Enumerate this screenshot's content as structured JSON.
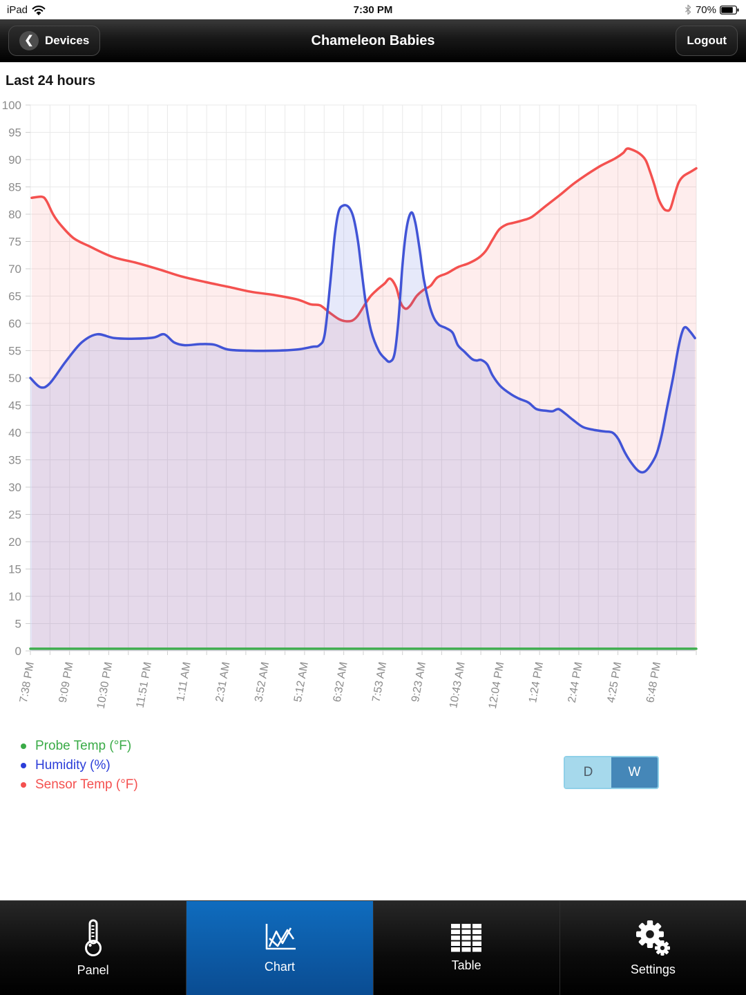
{
  "status_bar": {
    "device": "iPad",
    "time": "7:30 PM",
    "battery": "70%"
  },
  "nav_bar": {
    "back_label": "Devices",
    "title": "Chameleon Babies",
    "logout_label": "Logout"
  },
  "section": {
    "heading": "Last 24 hours"
  },
  "chart_data": {
    "type": "line",
    "title": "Last 24 hours",
    "ylim": [
      0,
      100
    ],
    "grid": true,
    "grid_color": "#e9e9e9",
    "tick_color": "#8b8b8b",
    "y_ticks": [
      0,
      5,
      10,
      15,
      20,
      25,
      30,
      35,
      40,
      45,
      50,
      55,
      60,
      65,
      70,
      75,
      80,
      85,
      90,
      95,
      100
    ],
    "x_gridline_count": 35,
    "x_label_every": 2,
    "x_tick_labels": [
      "7:38 PM",
      "9:09 PM",
      "10:30 PM",
      "11:51 PM",
      "1:11 AM",
      "2:31 AM",
      "3:52 AM",
      "5:12 AM",
      "6:32 AM",
      "7:53 AM",
      "9:23 AM",
      "10:43 AM",
      "12:04 PM",
      "1:24 PM",
      "2:44 PM",
      "4:25 PM",
      "6:48 PM"
    ],
    "series": [
      {
        "name": "Probe Temp (°F)",
        "color": "#3fae4f",
        "fill": "none",
        "points": [
          [
            0,
            0.4
          ],
          [
            100,
            0.4
          ]
        ]
      },
      {
        "name": "Humidity (%)",
        "color": "#4154d6",
        "fill": "rgba(65,84,214,0.13)",
        "points": [
          [
            0,
            50
          ],
          [
            1.5,
            48.3
          ],
          [
            2.9,
            49
          ],
          [
            5.3,
            53
          ],
          [
            7.7,
            56.5
          ],
          [
            10,
            58
          ],
          [
            12.6,
            57.3
          ],
          [
            15.7,
            57.2
          ],
          [
            18.5,
            57.4
          ],
          [
            20.1,
            58
          ],
          [
            21.6,
            56.5
          ],
          [
            23.2,
            56
          ],
          [
            25.5,
            56.2
          ],
          [
            27.6,
            56.1
          ],
          [
            29.7,
            55.2
          ],
          [
            32.8,
            55
          ],
          [
            36.9,
            55
          ],
          [
            40,
            55.2
          ],
          [
            42.3,
            55.7
          ],
          [
            43.4,
            56
          ],
          [
            44.2,
            58
          ],
          [
            45,
            67
          ],
          [
            45.7,
            76
          ],
          [
            46.3,
            80.5
          ],
          [
            47,
            81.6
          ],
          [
            47.8,
            81.3
          ],
          [
            48.5,
            79.5
          ],
          [
            49.2,
            75
          ],
          [
            49.8,
            69
          ],
          [
            50.4,
            63.5
          ],
          [
            51.2,
            58.5
          ],
          [
            52.3,
            55
          ],
          [
            53.3,
            53.5
          ],
          [
            54,
            53
          ],
          [
            54.7,
            54.5
          ],
          [
            55.3,
            61
          ],
          [
            55.9,
            71
          ],
          [
            56.5,
            77.5
          ],
          [
            57.2,
            80.3
          ],
          [
            57.8,
            78.5
          ],
          [
            58.4,
            74
          ],
          [
            59.1,
            68
          ],
          [
            59.9,
            63.5
          ],
          [
            60.6,
            61
          ],
          [
            61.4,
            59.7
          ],
          [
            62.3,
            59.2
          ],
          [
            63.4,
            58.3
          ],
          [
            64.2,
            56
          ],
          [
            65.2,
            54.8
          ],
          [
            66.3,
            53.5
          ],
          [
            67,
            53.2
          ],
          [
            67.7,
            53.3
          ],
          [
            68.6,
            52.5
          ],
          [
            69.4,
            50.5
          ],
          [
            70.6,
            48.5
          ],
          [
            72.2,
            47
          ],
          [
            73.4,
            46.2
          ],
          [
            74.8,
            45.5
          ],
          [
            76,
            44.3
          ],
          [
            77.4,
            44
          ],
          [
            78.4,
            43.9
          ],
          [
            79.3,
            44.3
          ],
          [
            80.3,
            43.5
          ],
          [
            81.5,
            42.3
          ],
          [
            83,
            41
          ],
          [
            84.6,
            40.5
          ],
          [
            86.2,
            40.2
          ],
          [
            87.4,
            40
          ],
          [
            88.3,
            38.8
          ],
          [
            89.3,
            36.3
          ],
          [
            90.4,
            34.2
          ],
          [
            91.4,
            32.9
          ],
          [
            92.2,
            32.8
          ],
          [
            93,
            33.8
          ],
          [
            94,
            36
          ],
          [
            94.8,
            39.5
          ],
          [
            95.6,
            44.5
          ],
          [
            96.5,
            50
          ],
          [
            97.3,
            55.5
          ],
          [
            97.9,
            58.5
          ],
          [
            98.4,
            59.3
          ],
          [
            99.2,
            58.3
          ],
          [
            99.8,
            57.3
          ]
        ]
      },
      {
        "name": "Sensor Temp (°F)",
        "color": "#f4514f",
        "fill": "rgba(244,81,79,0.10)",
        "points": [
          [
            0.2,
            83
          ],
          [
            1.7,
            83.2
          ],
          [
            2.4,
            82.5
          ],
          [
            3.4,
            80
          ],
          [
            4.5,
            78.1
          ],
          [
            6.5,
            75.6
          ],
          [
            8.9,
            74.1
          ],
          [
            12.3,
            72.2
          ],
          [
            15.9,
            71.1
          ],
          [
            19.3,
            69.9
          ],
          [
            22.7,
            68.6
          ],
          [
            26.2,
            67.6
          ],
          [
            29.7,
            66.7
          ],
          [
            33.1,
            65.8
          ],
          [
            36.6,
            65.2
          ],
          [
            40,
            64.4
          ],
          [
            42.1,
            63.5
          ],
          [
            43.5,
            63.3
          ],
          [
            44.9,
            62
          ],
          [
            46.3,
            60.8
          ],
          [
            47.3,
            60.4
          ],
          [
            48.3,
            60.5
          ],
          [
            49.1,
            61.3
          ],
          [
            50.1,
            63.2
          ],
          [
            51.1,
            65
          ],
          [
            52.2,
            66.3
          ],
          [
            53.2,
            67.3
          ],
          [
            54,
            68.2
          ],
          [
            54.9,
            66.7
          ],
          [
            55.6,
            63.8
          ],
          [
            56.3,
            62.7
          ],
          [
            57,
            63.2
          ],
          [
            58,
            65
          ],
          [
            59,
            66.1
          ],
          [
            60.1,
            66.9
          ],
          [
            61.1,
            68.4
          ],
          [
            62.6,
            69.2
          ],
          [
            64.2,
            70.3
          ],
          [
            65.8,
            71
          ],
          [
            67.3,
            72
          ],
          [
            68.4,
            73.3
          ],
          [
            69.4,
            75.3
          ],
          [
            70.4,
            77.2
          ],
          [
            71.5,
            78.1
          ],
          [
            72.5,
            78.4
          ],
          [
            74,
            78.9
          ],
          [
            75.3,
            79.5
          ],
          [
            77.4,
            81.5
          ],
          [
            79.5,
            83.5
          ],
          [
            81.5,
            85.5
          ],
          [
            83.6,
            87.3
          ],
          [
            85.7,
            88.9
          ],
          [
            87.8,
            90.2
          ],
          [
            89,
            91.2
          ],
          [
            89.6,
            92
          ],
          [
            90.4,
            91.8
          ],
          [
            91.6,
            91
          ],
          [
            92.4,
            89.9
          ],
          [
            93,
            88
          ],
          [
            93.7,
            85.4
          ],
          [
            94.3,
            82.9
          ],
          [
            95,
            81.2
          ],
          [
            95.5,
            80.7
          ],
          [
            96.1,
            81
          ],
          [
            96.8,
            83.8
          ],
          [
            97.4,
            85.9
          ],
          [
            98.1,
            87
          ],
          [
            99.2,
            87.8
          ],
          [
            100,
            88.4
          ]
        ]
      }
    ]
  },
  "legend": {
    "items": [
      {
        "label": "Probe Temp (°F)",
        "color": "#3aab47"
      },
      {
        "label": "Humidity (%)",
        "color": "#2c3ed9"
      },
      {
        "label": "Sensor Temp (°F)",
        "color": "#f4504f"
      }
    ]
  },
  "range_toggle": {
    "day_label": "D",
    "week_label": "W",
    "selected": "W",
    "day_bg": "#a6d9ec",
    "day_color": "#4e5b66",
    "week_bg": "#4587b8",
    "week_color": "#ffffff",
    "border_color": "#8fd0e8"
  },
  "tab_bar": {
    "active_color": "#0d5fae",
    "tabs": [
      {
        "label": "Panel",
        "active": false
      },
      {
        "label": "Chart",
        "active": true
      },
      {
        "label": "Table",
        "active": false
      },
      {
        "label": "Settings",
        "active": false
      }
    ]
  }
}
